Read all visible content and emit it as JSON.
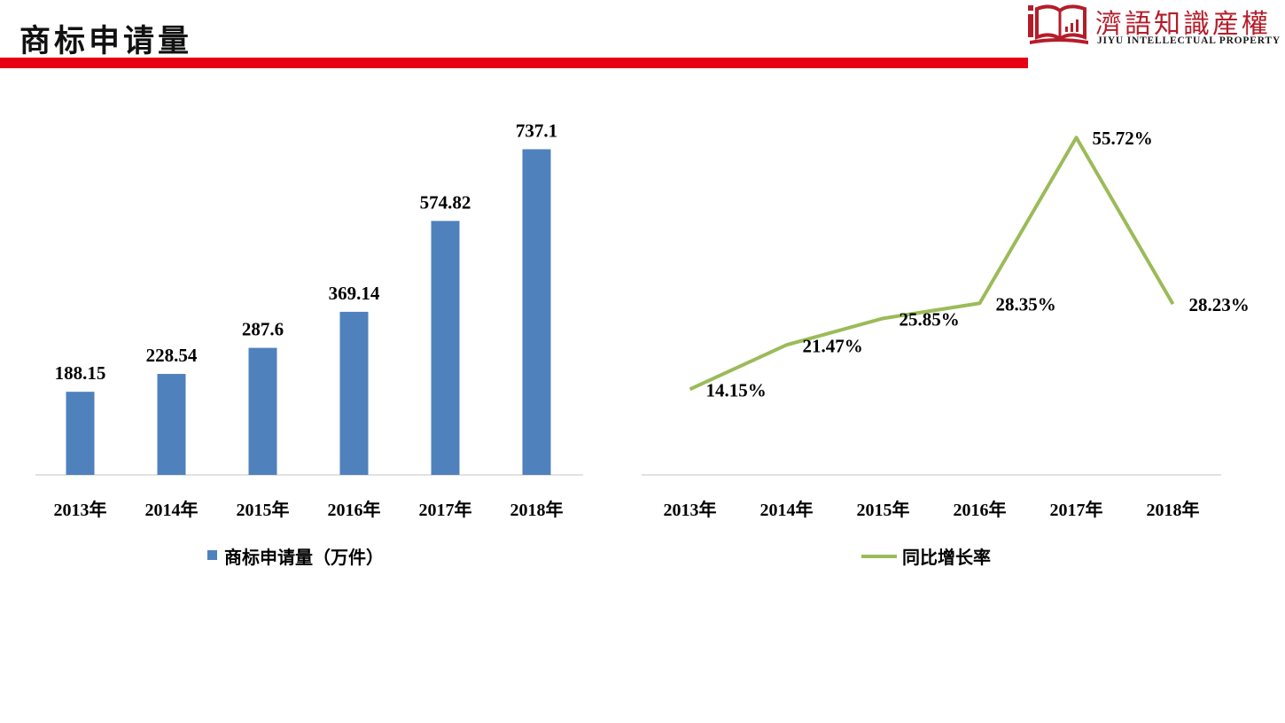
{
  "header": {
    "title": "商标申请量",
    "logo_cn": "濟語知識産權",
    "logo_en": "JIYU INTELLECTUAL PROPERTY"
  },
  "colors": {
    "accent_red": "#e60012",
    "logo_red": "#b51c2a",
    "bar_blue": "#4f81bd",
    "line_green": "#9bbb59",
    "axis_gray": "#d9d9d9"
  },
  "chart_data": [
    {
      "type": "bar",
      "categories": [
        "2013年",
        "2014年",
        "2015年",
        "2016年",
        "2017年",
        "2018年"
      ],
      "series": [
        {
          "name": "商标申请量（万件）",
          "values": [
            188.15,
            228.54,
            287.6,
            369.14,
            574.82,
            737.1
          ]
        }
      ],
      "data_labels": [
        "188.15",
        "228.54",
        "287.6",
        "369.14",
        "574.82",
        "737.1"
      ],
      "ylim": [
        0,
        750
      ],
      "grid": false,
      "legend_position": "bottom"
    },
    {
      "type": "line",
      "categories": [
        "2013年",
        "2014年",
        "2015年",
        "2016年",
        "2017年",
        "2018年"
      ],
      "series": [
        {
          "name": "同比增长率",
          "values": [
            14.15,
            21.47,
            25.85,
            28.35,
            55.72,
            28.23
          ]
        }
      ],
      "data_labels": [
        "14.15%",
        "21.47%",
        "25.85%",
        "28.35%",
        "55.72%",
        "28.23%"
      ],
      "ylim": [
        0,
        60
      ],
      "grid": false,
      "legend_position": "bottom"
    }
  ]
}
